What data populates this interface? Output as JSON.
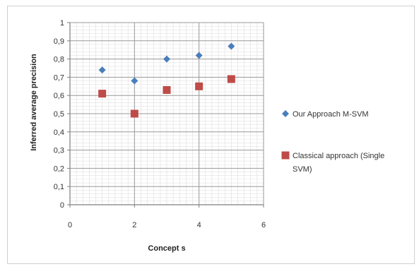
{
  "chart_data": {
    "type": "scatter",
    "title": "",
    "xlabel": "Concept s",
    "ylabel": "Inferred average precision",
    "xlim": [
      0,
      6
    ],
    "ylim": [
      0,
      1
    ],
    "xticks": [
      0,
      2,
      4,
      6
    ],
    "yticks": [
      0,
      0.1,
      0.2,
      0.3,
      0.4,
      0.5,
      0.6,
      0.7,
      0.8,
      0.9,
      1
    ],
    "xtick_labels": [
      "0",
      "2",
      "4",
      "6"
    ],
    "ytick_labels": [
      "0",
      "0,1",
      "0,2",
      "0,3",
      "0,4",
      "0,5",
      "0,6",
      "0,7",
      "0,8",
      "0,9",
      "1"
    ],
    "grid": true,
    "legend_position": "right",
    "series": [
      {
        "name": "Our Approach M-SVM",
        "legend_lines": [
          "Our Approach M-SVM"
        ],
        "marker": "diamond",
        "color": "#4a7ebb",
        "x": [
          1,
          2,
          3,
          4,
          5
        ],
        "y": [
          0.74,
          0.68,
          0.8,
          0.82,
          0.87
        ]
      },
      {
        "name": "Classical approach (Single SVM)",
        "legend_lines": [
          "Classical approach (Single",
          "SVM)"
        ],
        "marker": "square",
        "color": "#be4b48",
        "x": [
          1,
          2,
          3,
          4,
          5
        ],
        "y": [
          0.61,
          0.5,
          0.63,
          0.65,
          0.69
        ]
      }
    ]
  }
}
